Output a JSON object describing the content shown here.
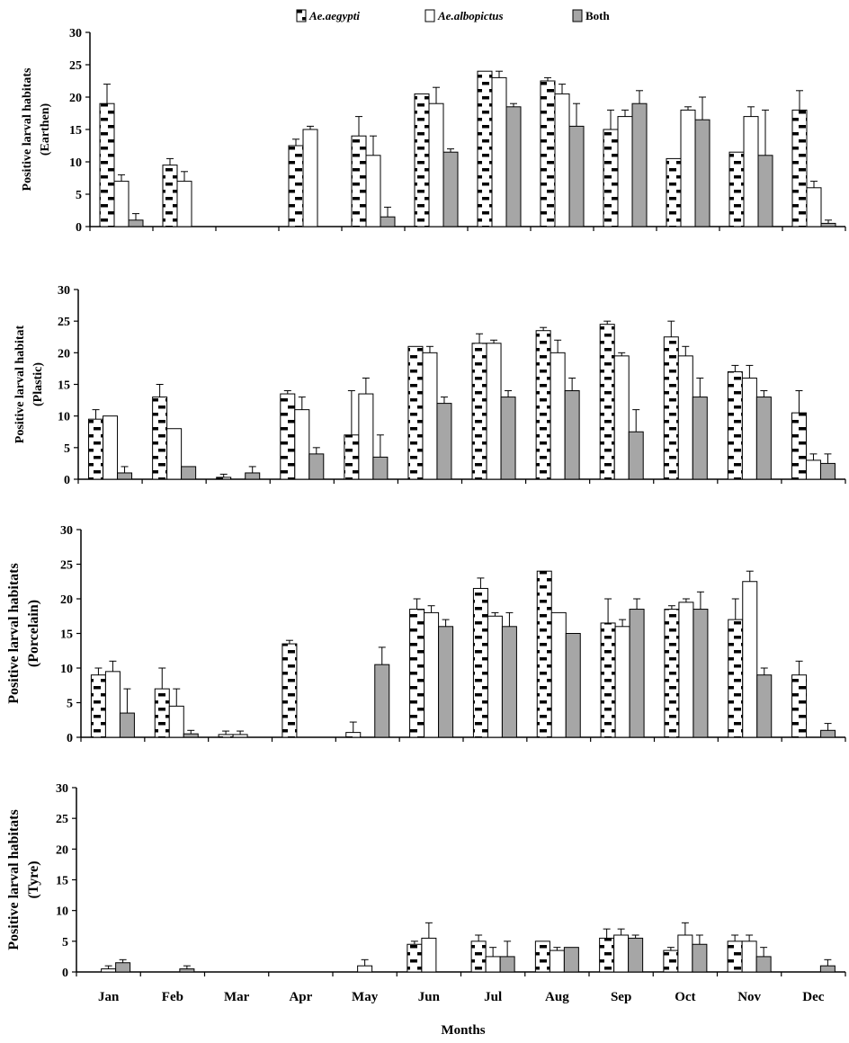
{
  "legend": [
    {
      "name": "Ae.aegypti",
      "style": "dashed",
      "italic": true
    },
    {
      "name": "Ae.albopictus",
      "style": "white",
      "italic": true
    },
    {
      "name": "Both",
      "style": "gray",
      "italic": false
    }
  ],
  "xlabel": "Months",
  "months": [
    "Jan",
    "Feb",
    "Mar",
    "Apr",
    "May",
    "Jun",
    "Jul",
    "Aug",
    "Sep",
    "Oct",
    "Nov",
    "Dec"
  ],
  "colors": {
    "gray": "#a6a6a6",
    "white": "#ffffff",
    "stroke": "#000000"
  },
  "chart_data": [
    {
      "type": "bar",
      "ylabel_line1": "Positive larval habitats",
      "ylabel_line2": "(Earthen)",
      "ylim": [
        0,
        30
      ],
      "yticks": [
        "0",
        "5",
        "10",
        "15",
        "20",
        "25",
        "30"
      ],
      "series": [
        {
          "name": "Ae.aegypti",
          "style": "dashed",
          "values": [
            19,
            9.5,
            0,
            12.5,
            14,
            20.5,
            24,
            22.5,
            15,
            10.5,
            11.5,
            18
          ],
          "errors": [
            3,
            1,
            0,
            1,
            3,
            0,
            0,
            0.5,
            3,
            0,
            0,
            3
          ]
        },
        {
          "name": "Ae.albopictus",
          "style": "white",
          "values": [
            7,
            7,
            0,
            15,
            11,
            19,
            23,
            20.5,
            17,
            18,
            17,
            6
          ],
          "errors": [
            1,
            1.5,
            0,
            0.5,
            3,
            2.5,
            1,
            1.5,
            1,
            0.5,
            1.5,
            1
          ]
        },
        {
          "name": "Both",
          "style": "gray",
          "values": [
            1,
            0,
            0,
            0,
            1.5,
            11.5,
            18.5,
            15.5,
            19,
            16.5,
            11,
            0.5
          ],
          "errors": [
            1,
            0,
            0,
            0,
            1.5,
            0.5,
            0.5,
            3.5,
            2,
            3.5,
            7,
            0.5
          ]
        }
      ]
    },
    {
      "type": "bar",
      "ylabel_line1": "Positive larval habitat",
      "ylabel_line2": "(Plastic)",
      "ylim": [
        0,
        30
      ],
      "yticks": [
        "0",
        "5",
        "10",
        "15",
        "20",
        "25",
        "30"
      ],
      "series": [
        {
          "name": "Ae.aegypti",
          "style": "dashed",
          "values": [
            9.5,
            13,
            0.3,
            13.5,
            7,
            21,
            21.5,
            23.5,
            24.5,
            22.5,
            17,
            10.5
          ],
          "errors": [
            1.5,
            2,
            0.5,
            0.5,
            7,
            0,
            1.5,
            0.5,
            0.5,
            2.5,
            1,
            3.5
          ]
        },
        {
          "name": "Ae.albopictus",
          "style": "white",
          "values": [
            10,
            8,
            0,
            11,
            13.5,
            20,
            21.5,
            20,
            19.5,
            19.5,
            16,
            3
          ],
          "errors": [
            0,
            0,
            0,
            2,
            2.5,
            1,
            0.5,
            2,
            0.5,
            1.5,
            2,
            1
          ]
        },
        {
          "name": "Both",
          "style": "gray",
          "values": [
            1,
            2,
            1,
            4,
            3.5,
            12,
            13,
            14,
            7.5,
            13,
            13,
            2.5
          ],
          "errors": [
            1,
            0,
            1,
            1,
            3.5,
            1,
            1,
            2,
            3.5,
            3,
            1,
            1.5
          ]
        }
      ]
    },
    {
      "type": "bar",
      "ylabel_line1": "Positive larval habitats",
      "ylabel_line2": "(Porcelain)",
      "ylim": [
        0,
        30
      ],
      "yticks": [
        "0",
        "5",
        "10",
        "15",
        "20",
        "25",
        "30"
      ],
      "series": [
        {
          "name": "Ae.aegypti",
          "style": "dashed",
          "values": [
            9,
            7,
            0.4,
            13.5,
            0.7,
            18.5,
            21.5,
            24,
            16.5,
            18.5,
            17,
            9
          ],
          "errors": [
            1,
            3,
            0.5,
            0.5,
            1.5,
            1.5,
            1.5,
            0,
            3.5,
            0.5,
            3,
            2
          ]
        },
        {
          "name": "Ae.albopictus",
          "style": "white",
          "values": [
            9.5,
            4.5,
            0.4,
            0,
            0,
            18,
            17.5,
            18,
            16,
            19.5,
            22.5,
            0
          ],
          "errors": [
            1.5,
            2.5,
            0.5,
            0,
            0,
            1,
            0.5,
            0,
            1,
            0.5,
            1.5,
            0
          ]
        },
        {
          "name": "Both",
          "style": "gray",
          "values": [
            3.5,
            0.5,
            0,
            0,
            10.5,
            16,
            16,
            15,
            18.5,
            18.5,
            9,
            1
          ],
          "errors": [
            3.5,
            0.5,
            0,
            0,
            2.5,
            1,
            2,
            0,
            1.5,
            2.5,
            1,
            1
          ]
        }
      ]
    },
    {
      "type": "bar",
      "ylabel_line1": "Positive larval habitats",
      "ylabel_line2": "(Tyre)",
      "ylim": [
        0,
        30
      ],
      "yticks": [
        "0",
        "5",
        "10",
        "15",
        "20",
        "25",
        "30"
      ],
      "series": [
        {
          "name": "Ae.aegypti",
          "style": "dashed",
          "values": [
            0,
            0,
            0,
            0,
            0,
            4.5,
            5,
            5,
            5.5,
            3.5,
            5,
            0
          ],
          "errors": [
            0,
            0,
            0,
            0,
            0,
            0.5,
            1,
            0,
            1.5,
            0.5,
            1,
            0
          ]
        },
        {
          "name": "Ae.albopictus",
          "style": "white",
          "values": [
            0.5,
            0,
            0,
            0,
            1,
            5.5,
            2.5,
            3.5,
            6,
            6,
            5,
            0
          ],
          "errors": [
            0.5,
            0,
            0,
            0,
            1,
            2.5,
            1.5,
            0.5,
            1,
            2,
            1,
            0
          ]
        },
        {
          "name": "Both",
          "style": "gray",
          "values": [
            1.5,
            0.5,
            0,
            0,
            0,
            0,
            2.5,
            4,
            5.5,
            4.5,
            2.5,
            1
          ],
          "errors": [
            0.5,
            0.5,
            0,
            0,
            0,
            0,
            2.5,
            0,
            0.5,
            1.5,
            1.5,
            1
          ]
        }
      ]
    }
  ]
}
